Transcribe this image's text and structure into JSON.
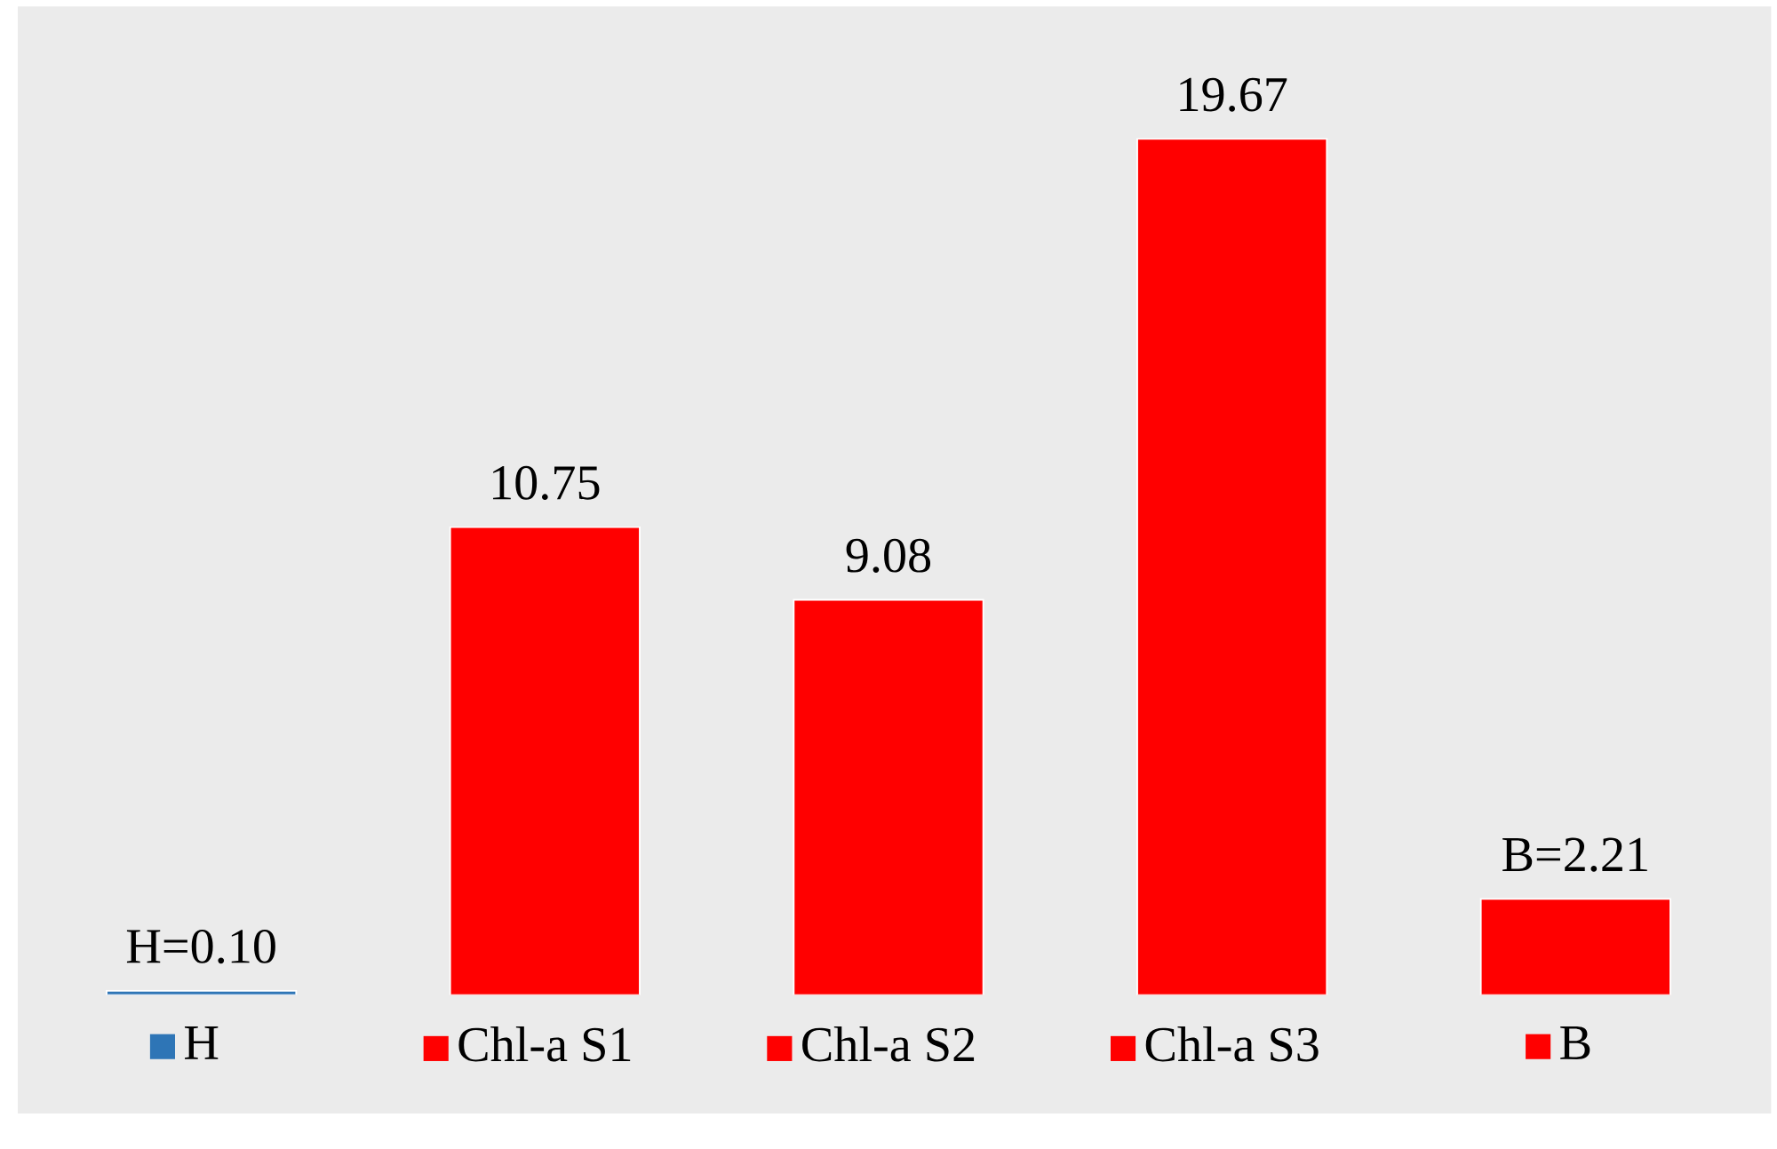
{
  "chart_data": {
    "type": "bar",
    "categories": [
      "H",
      "Chl-a S1",
      "Chl-a S2",
      "Chl-a S3",
      "B"
    ],
    "values": [
      0.1,
      10.75,
      9.08,
      19.67,
      2.21
    ],
    "colors": [
      "#2e75b6",
      "#ff0000",
      "#ff0000",
      "#ff0000",
      "#ff0000"
    ],
    "value_labels": [
      "H=0.10",
      "10.75",
      "9.08",
      "19.67",
      "B=2.21"
    ]
  }
}
